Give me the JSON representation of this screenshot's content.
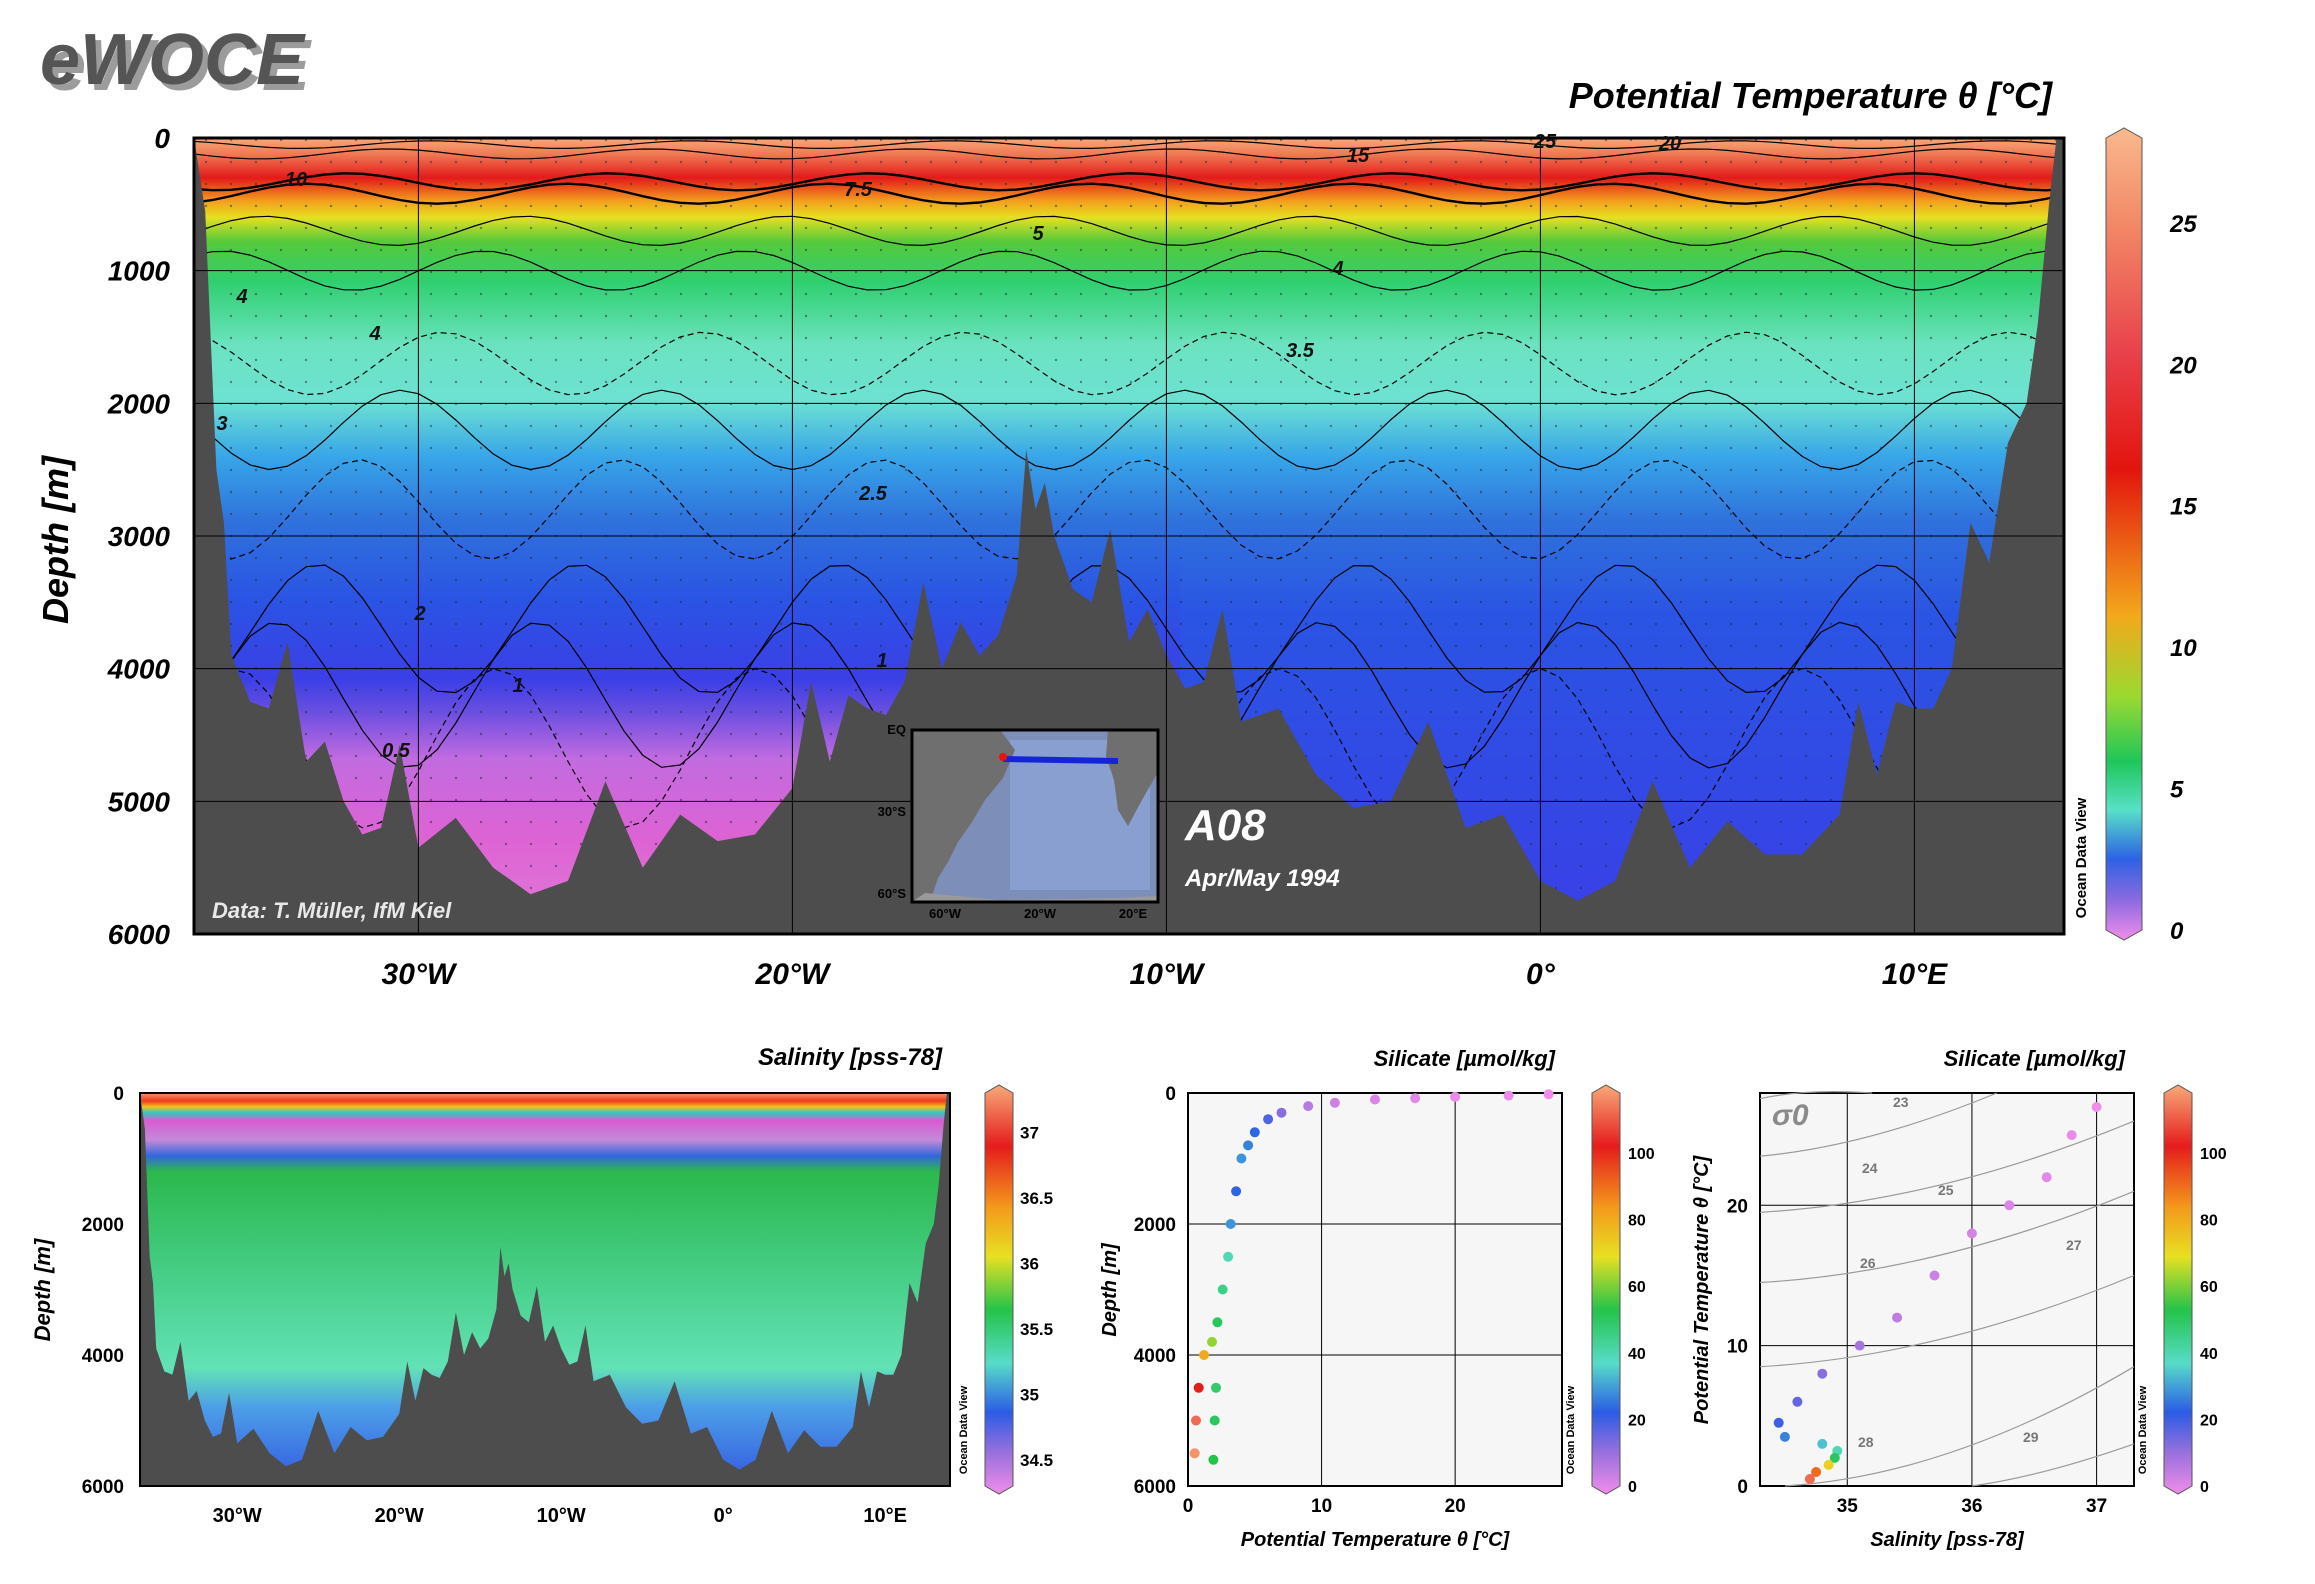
{
  "header": {
    "logo": "eWOCE"
  },
  "main": {
    "title": "Potential Temperature θ [°C]",
    "ylabel": "Depth [m]",
    "yticks": [
      "0",
      "1000",
      "2000",
      "3000",
      "4000",
      "5000",
      "6000"
    ],
    "xticks": [
      "30°W",
      "20°W",
      "10°W",
      "0°",
      "10°E"
    ],
    "credit": "Data: T. Müller, IfM Kiel",
    "section_name": "A08",
    "section_date": "Apr/May 1994",
    "odv": "Ocean Data View",
    "colorbar_ticks": [
      "25",
      "20",
      "15",
      "10",
      "5",
      "0"
    ],
    "contour_labels": [
      "25",
      "20",
      "15",
      "10",
      "7.5",
      "5",
      "4",
      "4",
      "4",
      "3.5",
      "3",
      "2.5",
      "2",
      "1",
      "0.5",
      "1"
    ],
    "inset_labels": [
      "EQ",
      "30°S",
      "60°S",
      "60°W",
      "20°W",
      "20°E"
    ]
  },
  "panel_salinity": {
    "title": "Salinity [pss-78]",
    "ylabel": "Depth [m]",
    "yticks": [
      "0",
      "2000",
      "4000",
      "6000"
    ],
    "xticks": [
      "30°W",
      "20°W",
      "10°W",
      "0°",
      "10°E"
    ],
    "colorbar_ticks": [
      "37",
      "36.5",
      "36",
      "35.5",
      "35",
      "34.5"
    ],
    "odv": "Ocean Data View"
  },
  "panel_theta_depth": {
    "title": "Silicate [µmol/kg]",
    "xlabel": "Potential Temperature θ [°C]",
    "ylabel": "Depth [m]",
    "yticks": [
      "0",
      "2000",
      "4000",
      "6000"
    ],
    "xticks": [
      "0",
      "10",
      "20"
    ],
    "colorbar_ticks": [
      "100",
      "80",
      "60",
      "40",
      "20",
      "0"
    ],
    "odv": "Ocean Data View"
  },
  "panel_ts": {
    "title": "Silicate [µmol/kg]",
    "xlabel": "Salinity [pss-78]",
    "ylabel": "Potential Temperature θ [°C]",
    "sigma_label": "σ0",
    "isopycnal_labels": [
      "23",
      "24",
      "25",
      "26",
      "27",
      "28",
      "29"
    ],
    "yticks": [
      "0",
      "10",
      "20"
    ],
    "xticks": [
      "35",
      "36",
      "37"
    ],
    "colorbar_ticks": [
      "100",
      "80",
      "60",
      "40",
      "20",
      "0"
    ],
    "odv": "Ocean Data View"
  },
  "chart_data": [
    {
      "type": "heatmap",
      "title": "Potential Temperature θ [°C]",
      "ylabel": "Depth [m]",
      "xlim": [
        -36,
        14
      ],
      "ylim": [
        6000,
        0
      ],
      "colorbar_range": [
        0,
        28
      ],
      "contours": [
        {
          "level": 20,
          "depth_m": 50
        },
        {
          "level": 15,
          "depth_m": 120
        },
        {
          "level": 10,
          "depth_m": 330
        },
        {
          "level": 7.5,
          "depth_m": 420
        },
        {
          "level": 5,
          "depth_m": 700
        },
        {
          "level": 4,
          "depth_m": 1000
        },
        {
          "level": 3.5,
          "depth_m": 1700
        },
        {
          "level": 3,
          "depth_m": 2200
        },
        {
          "level": 2.5,
          "depth_m": 2800
        },
        {
          "level": 2,
          "depth_m": 3700
        },
        {
          "level": 1,
          "depth_m": 4200
        },
        {
          "level": 0.5,
          "depth_m": 4600
        }
      ],
      "bathymetry": {
        "lon": [
          -36,
          -35.4,
          -35,
          -34,
          -33,
          -32,
          -31,
          -30,
          -28,
          -26,
          -24,
          -22,
          -20,
          -19,
          -18,
          -17,
          -16,
          -15,
          -14,
          -13.5,
          -13,
          -12,
          -11,
          -10,
          -9,
          -8,
          -6,
          -4,
          -2,
          0,
          2,
          4,
          6,
          8,
          9,
          10,
          11,
          12,
          13,
          13.6,
          14
        ],
        "depth_m": [
          0,
          2500,
          3900,
          4300,
          4700,
          5000,
          5200,
          5350,
          5500,
          5600,
          5500,
          5300,
          4900,
          4700,
          4300,
          4100,
          4000,
          3900,
          3300,
          2800,
          3000,
          3500,
          3800,
          3900,
          4100,
          4400,
          4800,
          5000,
          5200,
          5600,
          5600,
          5500,
          5400,
          5100,
          4800,
          4300,
          4000,
          3200,
          2000,
          500,
          0
        ]
      }
    },
    {
      "type": "heatmap",
      "title": "Salinity [pss-78]",
      "ylabel": "Depth [m]",
      "xlim": [
        -36,
        14
      ],
      "ylim": [
        6000,
        0
      ],
      "colorbar_range": [
        34.3,
        37.3
      ]
    },
    {
      "type": "scatter",
      "title": "Silicate [µmol/kg]",
      "xlabel": "Potential Temperature θ [°C]",
      "ylabel": "Depth [m]",
      "xlim": [
        0,
        28
      ],
      "ylim": [
        6000,
        0
      ],
      "points": [
        {
          "x": 27,
          "y": 20,
          "c": 0
        },
        {
          "x": 24,
          "y": 40,
          "c": 1
        },
        {
          "x": 20,
          "y": 60,
          "c": 1
        },
        {
          "x": 17,
          "y": 80,
          "c": 2
        },
        {
          "x": 14,
          "y": 100,
          "c": 3
        },
        {
          "x": 11,
          "y": 150,
          "c": 5
        },
        {
          "x": 9,
          "y": 200,
          "c": 8
        },
        {
          "x": 7,
          "y": 300,
          "c": 14
        },
        {
          "x": 6,
          "y": 400,
          "c": 20
        },
        {
          "x": 5,
          "y": 600,
          "c": 25
        },
        {
          "x": 4.5,
          "y": 800,
          "c": 28
        },
        {
          "x": 4,
          "y": 1000,
          "c": 30
        },
        {
          "x": 3.6,
          "y": 1500,
          "c": 25
        },
        {
          "x": 3.2,
          "y": 2000,
          "c": 30
        },
        {
          "x": 3,
          "y": 2500,
          "c": 40
        },
        {
          "x": 2.6,
          "y": 3000,
          "c": 45
        },
        {
          "x": 2.2,
          "y": 3500,
          "c": 50
        },
        {
          "x": 1.8,
          "y": 3800,
          "c": 60
        },
        {
          "x": 1.2,
          "y": 4000,
          "c": 80
        },
        {
          "x": 0.8,
          "y": 4500,
          "c": 100
        },
        {
          "x": 0.6,
          "y": 5000,
          "c": 110
        },
        {
          "x": 0.5,
          "y": 5500,
          "c": 115
        },
        {
          "x": 2.1,
          "y": 4500,
          "c": 48
        },
        {
          "x": 2.0,
          "y": 5000,
          "c": 50
        },
        {
          "x": 1.9,
          "y": 5600,
          "c": 52
        }
      ]
    },
    {
      "type": "scatter",
      "title": "Silicate [µmol/kg]",
      "xlabel": "Salinity [pss-78]",
      "ylabel": "Potential Temperature θ [°C]",
      "xlim": [
        34.3,
        37.3
      ],
      "ylim": [
        0,
        28
      ],
      "points": [
        {
          "x": 37.0,
          "y": 27,
          "c": 0
        },
        {
          "x": 36.8,
          "y": 25,
          "c": 1
        },
        {
          "x": 36.6,
          "y": 22,
          "c": 2
        },
        {
          "x": 36.3,
          "y": 20,
          "c": 3
        },
        {
          "x": 36.0,
          "y": 18,
          "c": 4
        },
        {
          "x": 35.7,
          "y": 15,
          "c": 5
        },
        {
          "x": 35.4,
          "y": 12,
          "c": 7
        },
        {
          "x": 35.1,
          "y": 10,
          "c": 10
        },
        {
          "x": 34.8,
          "y": 8,
          "c": 14
        },
        {
          "x": 34.6,
          "y": 6,
          "c": 18
        },
        {
          "x": 34.45,
          "y": 4.5,
          "c": 22
        },
        {
          "x": 34.5,
          "y": 3.5,
          "c": 28
        },
        {
          "x": 34.8,
          "y": 3,
          "c": 35
        },
        {
          "x": 34.92,
          "y": 2.5,
          "c": 40
        },
        {
          "x": 34.9,
          "y": 2,
          "c": 50
        },
        {
          "x": 34.85,
          "y": 1.5,
          "c": 70
        },
        {
          "x": 34.75,
          "y": 1,
          "c": 90
        },
        {
          "x": 34.7,
          "y": 0.5,
          "c": 110
        }
      ]
    }
  ]
}
